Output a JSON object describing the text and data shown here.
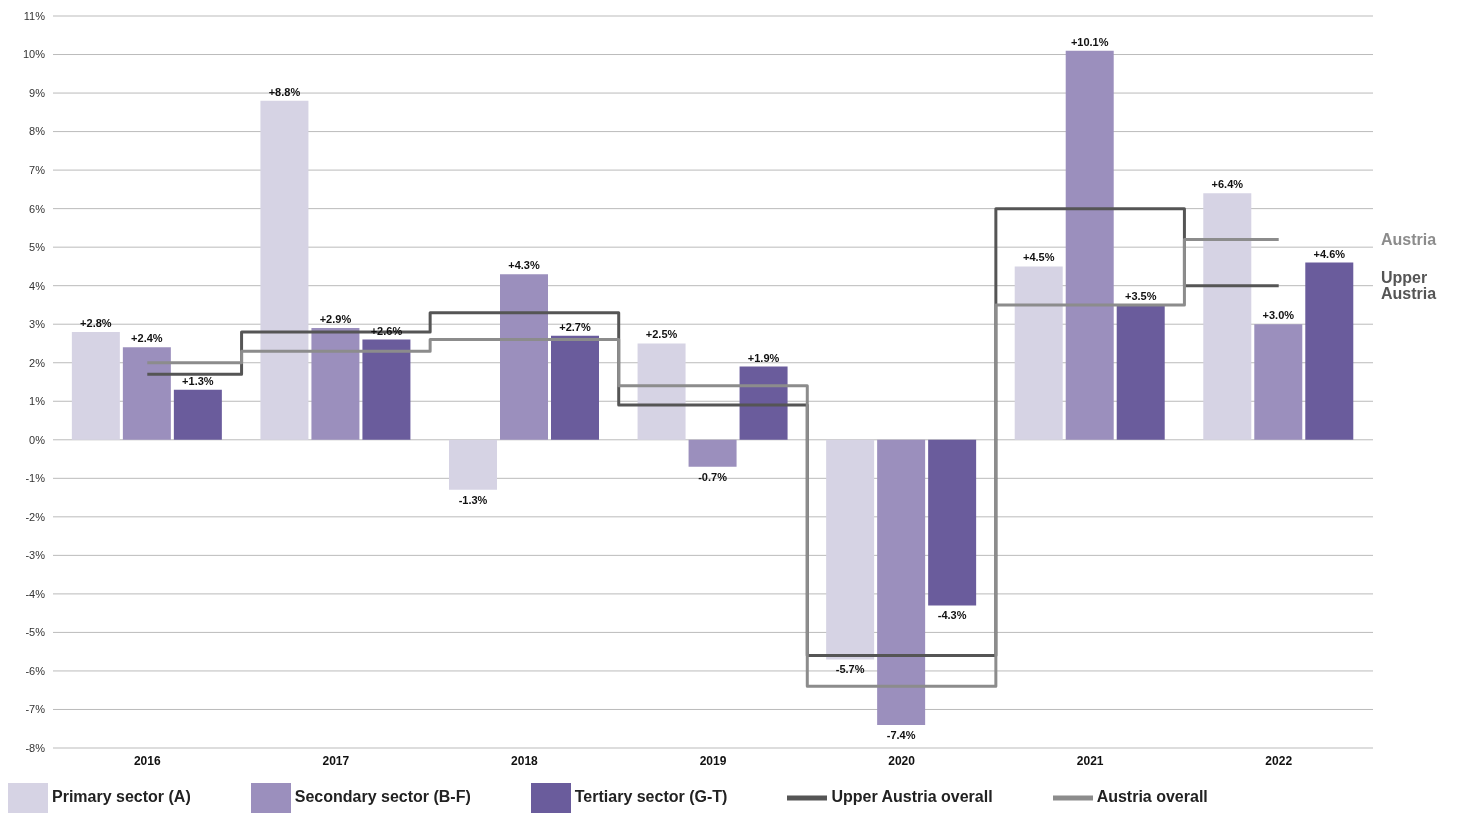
{
  "chart_data": {
    "type": "bar",
    "categories": [
      "2016",
      "2017",
      "2018",
      "2019",
      "2020",
      "2021",
      "2022"
    ],
    "series": [
      {
        "name": "Primary sector (A)",
        "color": "#d6d3e4",
        "values": [
          2.8,
          8.8,
          -1.3,
          2.5,
          -5.7,
          4.5,
          6.4
        ],
        "value_labels": [
          "+2.8%",
          "+8.8%",
          "-1.3%",
          "+2.5%",
          "-5.7%",
          "+4.5%",
          "+6.4%"
        ]
      },
      {
        "name": "Secondary sector (B-F)",
        "color": "#9b8fbd",
        "values": [
          2.4,
          2.9,
          4.3,
          -0.7,
          -7.4,
          10.1,
          3.0
        ],
        "value_labels": [
          "+2.4%",
          "+2.9%",
          "+4.3%",
          "-0.7%",
          "-7.4%",
          "+10.1%",
          "+3.0%"
        ]
      },
      {
        "name": "Tertiary sector (G-T)",
        "color": "#6a5c9c",
        "values": [
          1.3,
          2.6,
          2.7,
          1.9,
          -4.3,
          3.5,
          4.6
        ],
        "value_labels": [
          "+1.3%",
          "+2.6%",
          "+2.7%",
          "+1.9%",
          "-4.3%",
          "+3.5%",
          "+4.6%"
        ]
      },
      {
        "name": "Upper Austria overall",
        "type": "step",
        "color": "#555555",
        "values": [
          1.7,
          2.8,
          3.3,
          0.9,
          -5.6,
          6.0,
          4.0
        ]
      },
      {
        "name": "Austria overall",
        "type": "step",
        "color": "#8c8c8c",
        "values": [
          2.0,
          2.3,
          2.6,
          1.4,
          -6.4,
          3.5,
          5.2
        ]
      }
    ],
    "ylim": [
      -8,
      11
    ],
    "yticks": [
      {
        "value": -8,
        "label": "-8%"
      },
      {
        "value": -7,
        "label": "-7%"
      },
      {
        "value": -6,
        "label": "-6%"
      },
      {
        "value": -5,
        "label": "-5%"
      },
      {
        "value": -4,
        "label": "-4%"
      },
      {
        "value": -3,
        "label": "-3%"
      },
      {
        "value": -2,
        "label": "-2%"
      },
      {
        "value": -1,
        "label": "-1%"
      },
      {
        "value": 0,
        "label": "0%"
      },
      {
        "value": 1,
        "label": "1%"
      },
      {
        "value": 2,
        "label": "2%"
      },
      {
        "value": 3,
        "label": "3%"
      },
      {
        "value": 4,
        "label": "4%"
      },
      {
        "value": 5,
        "label": "5%"
      },
      {
        "value": 6,
        "label": "6%"
      },
      {
        "value": 7,
        "label": "7%"
      },
      {
        "value": 8,
        "label": "8%"
      },
      {
        "value": 9,
        "label": "9%"
      },
      {
        "value": 10,
        "label": "10%"
      },
      {
        "value": 11,
        "label": "11%"
      }
    ],
    "grid": "y",
    "legend": "bottom",
    "annotations": [
      "Upper Austria",
      "Austria"
    ]
  }
}
